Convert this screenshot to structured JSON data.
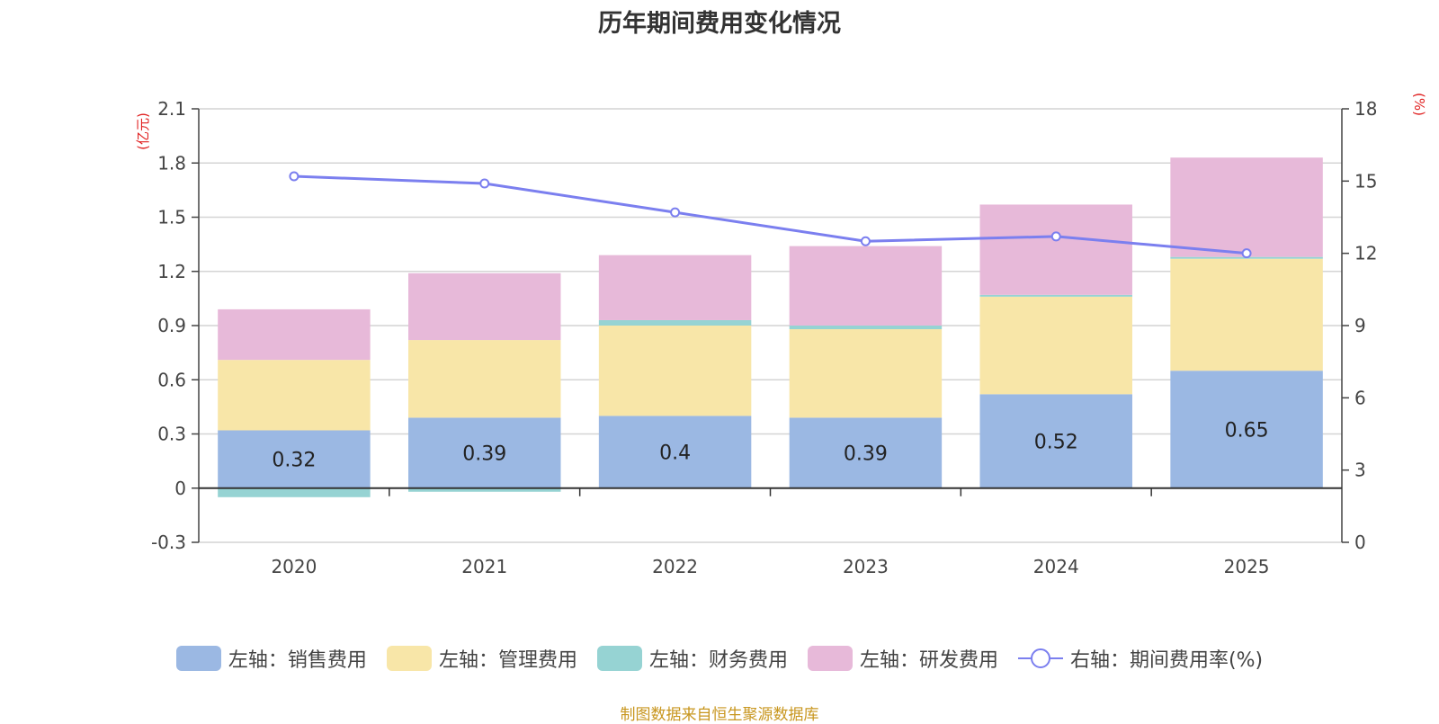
{
  "chart_data": {
    "type": "bar",
    "title": "历年期间费用变化情况",
    "categories": [
      "2020",
      "2021",
      "2022",
      "2023",
      "2024",
      "2025"
    ],
    "stacked": true,
    "left_axis": {
      "unit": "(亿元)",
      "ylim": [
        -0.3,
        2.1
      ],
      "ticks": [
        -0.3,
        0,
        0.3,
        0.6,
        0.9,
        1.2,
        1.5,
        1.8,
        2.1
      ],
      "tick_labels": [
        "-0.3",
        "0",
        "0.3",
        "0.6",
        "0.9",
        "1.2",
        "1.5",
        "1.8",
        "2.1"
      ]
    },
    "right_axis": {
      "unit": "(%)",
      "ylim": [
        0,
        18
      ],
      "ticks": [
        0,
        3,
        6,
        9,
        12,
        15,
        18
      ],
      "tick_labels": [
        "0",
        "3",
        "6",
        "9",
        "12",
        "15",
        "18"
      ]
    },
    "series": [
      {
        "name": "左轴：销售费用",
        "axis": "left",
        "type": "bar",
        "color": "#9bb8e3",
        "values": [
          0.32,
          0.39,
          0.4,
          0.39,
          0.52,
          0.65
        ],
        "labels": [
          "0.32",
          "0.39",
          "0.4",
          "0.39",
          "0.52",
          "0.65"
        ]
      },
      {
        "name": "左轴：管理费用",
        "axis": "left",
        "type": "bar",
        "color": "#f8e6a8",
        "values": [
          0.39,
          0.43,
          0.5,
          0.49,
          0.54,
          0.62
        ]
      },
      {
        "name": "左轴：财务费用",
        "axis": "left",
        "type": "bar",
        "color": "#96d3d3",
        "values": [
          -0.05,
          -0.02,
          0.03,
          0.02,
          0.01,
          0.01
        ]
      },
      {
        "name": "左轴：研发费用",
        "axis": "left",
        "type": "bar",
        "color": "#e7b9d9",
        "values": [
          0.28,
          0.37,
          0.36,
          0.44,
          0.5,
          0.55
        ]
      },
      {
        "name": "右轴：期间费用率(%)",
        "axis": "right",
        "type": "line",
        "color": "#7b7fef",
        "values": [
          15.2,
          14.9,
          13.7,
          12.5,
          12.7,
          12.0
        ]
      }
    ]
  },
  "footer": {
    "source": "制图数据来自恒生聚源数据库"
  }
}
